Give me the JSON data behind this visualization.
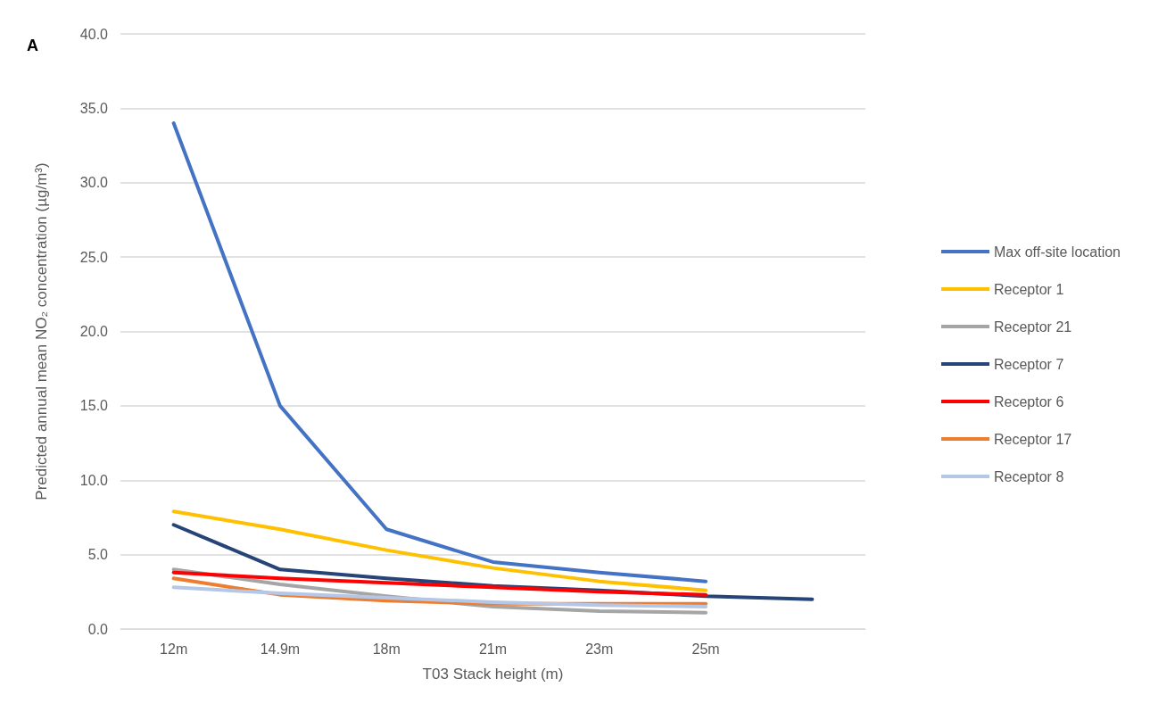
{
  "chart_data": {
    "type": "line",
    "xlabel": "T03 Stack height (m)",
    "ylabel": "Predicted annual mean NO₂ concentration (µg/m³)",
    "annotations": [
      "A"
    ],
    "categories": [
      "12m",
      "14.9m",
      "18m",
      "21m",
      "23m",
      "25m",
      null
    ],
    "ylim": [
      0,
      40
    ],
    "yticks": [
      {
        "value": 0,
        "label": "0.0"
      },
      {
        "value": 5,
        "label": "5.0"
      },
      {
        "value": 10,
        "label": "10.0"
      },
      {
        "value": 15,
        "label": "15.0"
      },
      {
        "value": 20,
        "label": "20.0"
      },
      {
        "value": 25,
        "label": "25.0"
      },
      {
        "value": 30,
        "label": "30.0"
      },
      {
        "value": 35,
        "label": "35.0"
      },
      {
        "value": 40,
        "label": "40.0"
      }
    ],
    "grid": "y",
    "legend": "right",
    "marker": "none",
    "line_style": "solid",
    "series": [
      {
        "name": "Max off-site location",
        "color": "#4472c4",
        "values": [
          34.0,
          15.0,
          6.7,
          4.5,
          3.8,
          3.2,
          null
        ]
      },
      {
        "name": "Receptor 1",
        "color": "#ffc000",
        "values": [
          7.9,
          6.7,
          5.3,
          4.1,
          3.2,
          2.6,
          null
        ]
      },
      {
        "name": "Receptor 21",
        "color": "#a5a5a5",
        "values": [
          4.0,
          3.0,
          2.2,
          1.5,
          1.2,
          1.1,
          null
        ]
      },
      {
        "name": "Receptor 7",
        "color": "#264478",
        "values": [
          7.0,
          4.0,
          3.4,
          2.9,
          2.6,
          2.2,
          2.0
        ]
      },
      {
        "name": "Receptor 6",
        "color": "#ff0000",
        "values": [
          3.8,
          3.4,
          3.1,
          2.8,
          2.5,
          2.3,
          null
        ]
      },
      {
        "name": "Receptor 17",
        "color": "#ed7d31",
        "values": [
          3.4,
          2.3,
          1.9,
          1.7,
          1.7,
          1.7,
          null
        ]
      },
      {
        "name": "Receptor 8",
        "color": "#b4c7e7",
        "values": [
          2.8,
          2.4,
          2.1,
          1.8,
          1.6,
          1.5,
          null
        ]
      }
    ]
  }
}
